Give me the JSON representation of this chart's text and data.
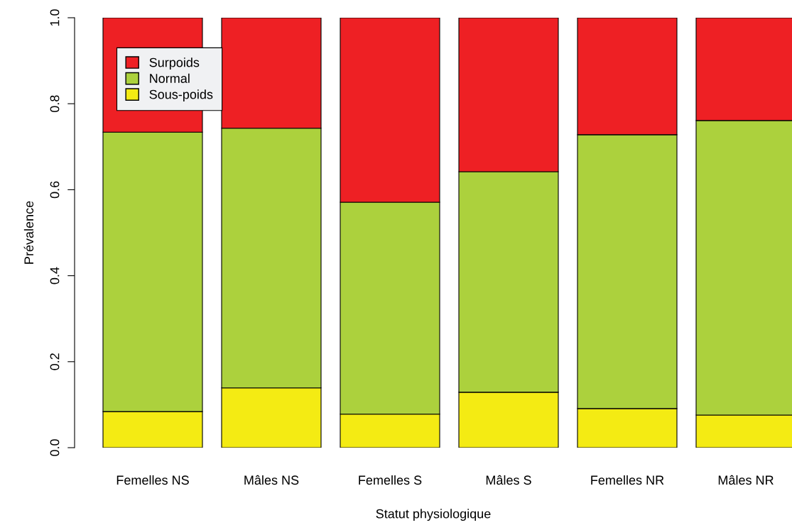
{
  "chart_data": {
    "type": "bar",
    "stacked": true,
    "xlabel": "Statut physiologique",
    "ylabel": "Prévalence",
    "categories": [
      "Femelles NS",
      "Mâles NS",
      "Femelles S",
      "Mâles S",
      "Femelles NR",
      "Mâles NR"
    ],
    "series": [
      {
        "name": "Sous-poids",
        "color": "#f4eb13",
        "values": [
          0.084,
          0.139,
          0.078,
          0.129,
          0.091,
          0.076
        ]
      },
      {
        "name": "Normal",
        "color": "#acd13d",
        "values": [
          0.65,
          0.604,
          0.493,
          0.513,
          0.637,
          0.685
        ]
      },
      {
        "name": "Surpoids",
        "color": "#ee2024",
        "values": [
          0.266,
          0.257,
          0.429,
          0.358,
          0.272,
          0.239
        ]
      }
    ],
    "ylim": [
      0,
      1
    ],
    "yticks": [
      {
        "value": 0,
        "label": "0.0"
      },
      {
        "value": 0.2,
        "label": "0.2"
      },
      {
        "value": 0.4,
        "label": "0.4"
      },
      {
        "value": 0.6,
        "label": "0.6"
      },
      {
        "value": 0.8,
        "label": "0.8"
      },
      {
        "value": 1,
        "label": "1.0"
      }
    ],
    "legend": "top left",
    "grid": false
  }
}
